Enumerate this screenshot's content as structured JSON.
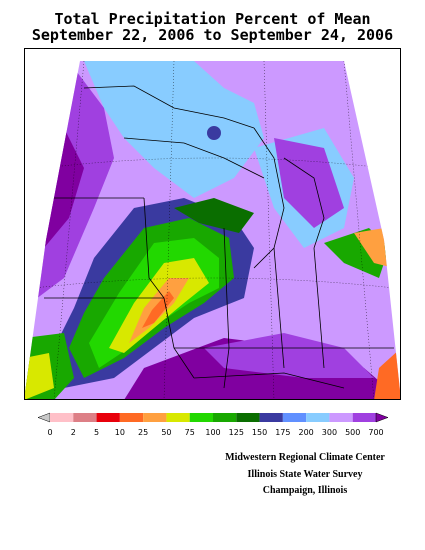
{
  "header": {
    "title": "Total Precipitation Percent of Mean",
    "subtitle": "September 22, 2006 to September 24, 2006"
  },
  "legend": {
    "labels": [
      "0",
      "2",
      "5",
      "10",
      "25",
      "50",
      "75",
      "100",
      "125",
      "150",
      "175",
      "200",
      "300",
      "500",
      "700"
    ],
    "colors": [
      "#c8c8c8",
      "#ffc0c8",
      "#dd7f86",
      "#e8000b",
      "#ff6a24",
      "#ffa040",
      "#d8e800",
      "#22d800",
      "#18a800",
      "#0a6e00",
      "#3a3aa0",
      "#6090ff",
      "#88ccff",
      "#cc99ff",
      "#a040e0",
      "#8000a0"
    ]
  },
  "credits": {
    "line1": "Midwestern Regional Climate Center",
    "line2": "Illinois State Water Survey",
    "line3": "Champaign, Illinois"
  }
}
